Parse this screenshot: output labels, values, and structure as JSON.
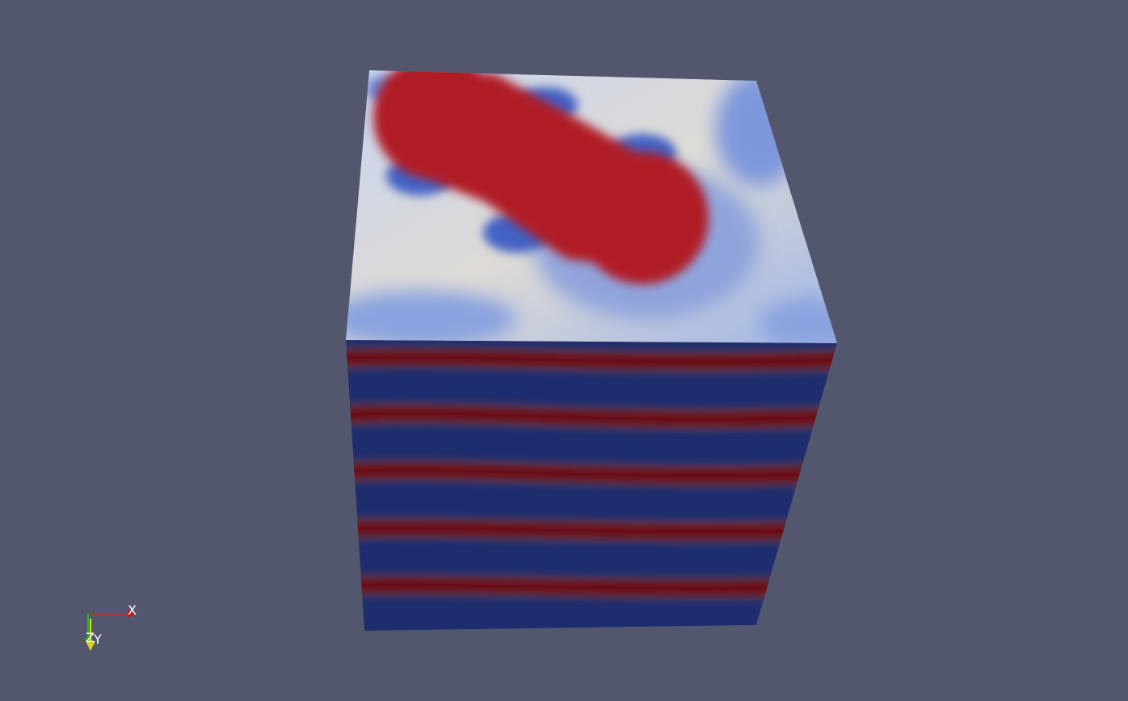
{
  "viewport": {
    "background_color": "#52576e"
  },
  "cube": {
    "colormap": "cool-to-warm",
    "colors": {
      "warm": "#b01e28",
      "deep_warm": "#6a0b12",
      "cool": "#3d5cc4",
      "deep_cool": "#1a2866",
      "neutral": "#dcdcdc"
    },
    "front_face_bands": {
      "warm_band_count": 5,
      "cool_band_count": 6
    }
  },
  "orientation_axes": {
    "x_label": "X",
    "y_label": "Y",
    "z_label": "Z",
    "x_color": "#e02020",
    "y_color": "#e8e020",
    "z_color": "#20c020"
  }
}
